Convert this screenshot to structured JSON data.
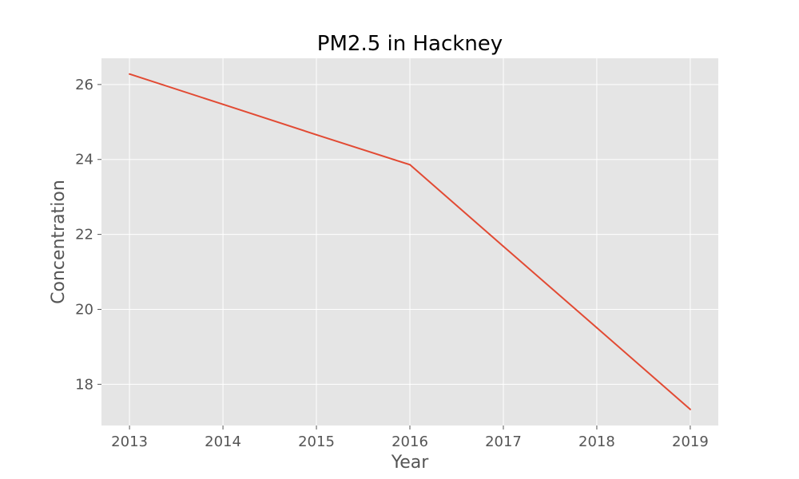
{
  "chart_data": {
    "type": "line",
    "title": "PM2.5 in Hackney",
    "xlabel": "Year",
    "ylabel": "Concentration",
    "x": [
      2013,
      2014,
      2015,
      2016,
      2017,
      2018,
      2019
    ],
    "series": [
      {
        "values": [
          26.28,
          25.47,
          24.66,
          23.86,
          21.68,
          19.51,
          17.33
        ],
        "color": "#e24a33"
      }
    ],
    "xticks": [
      "2013",
      "2014",
      "2015",
      "2016",
      "2017",
      "2018",
      "2019"
    ],
    "yticks": [
      "18",
      "20",
      "22",
      "24",
      "26"
    ],
    "xlim": [
      2012.7,
      2019.3
    ],
    "ylim": [
      16.9,
      26.7
    ],
    "grid": true,
    "legend": "none",
    "colors": {
      "plot_background": "#e5e5e5",
      "grid": "#ffffff",
      "tick": "#555555",
      "title": "#000000"
    }
  }
}
